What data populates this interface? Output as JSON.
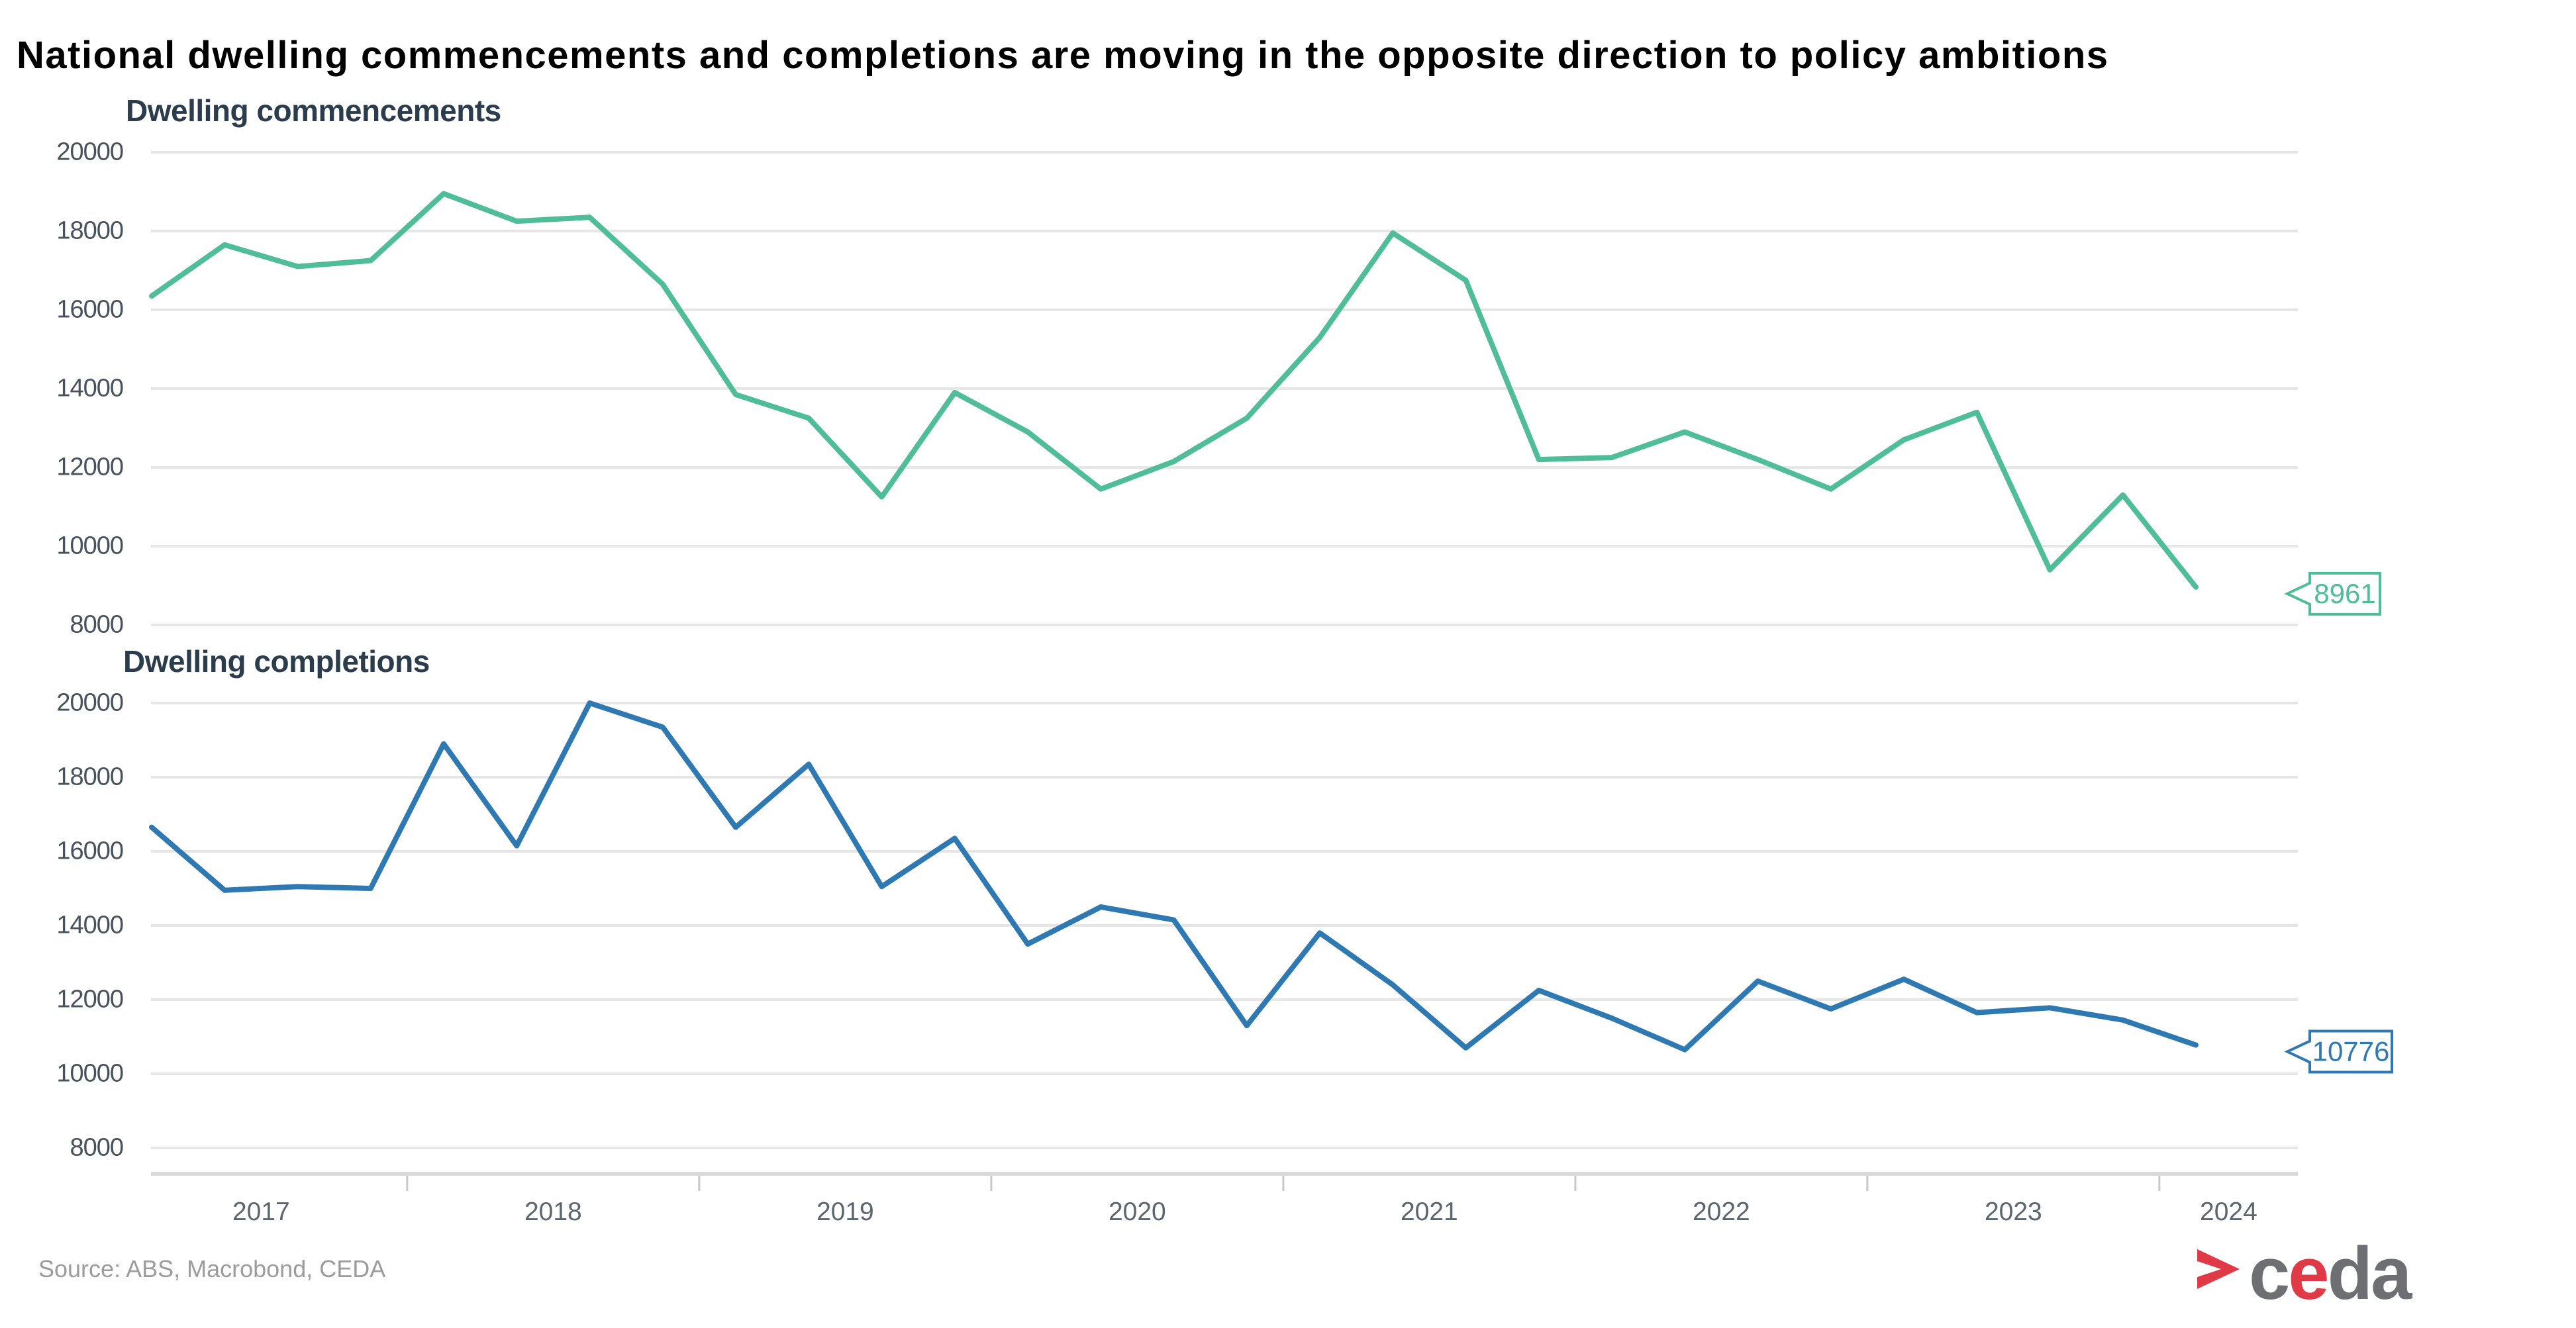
{
  "title": "National dwelling commencements and completions are moving in the opposite direction to policy ambitions",
  "source": "Source: ABS, Macrobond, CEDA",
  "x_years": [
    "2017",
    "2018",
    "2019",
    "2020",
    "2021",
    "2022",
    "2023",
    "2024"
  ],
  "chart_data": [
    {
      "type": "line",
      "title": "Dwelling commencements",
      "line_color": "#4FBD97",
      "end_label": "8961",
      "ylim": [
        8000,
        20000
      ],
      "yticks": [
        20000,
        18000,
        16000,
        14000,
        12000,
        10000,
        8000
      ],
      "grid": true,
      "legend": "none",
      "categories": [
        "2017 Q1",
        "2017 Q2",
        "2017 Q3",
        "2017 Q4",
        "2018 Q1",
        "2018 Q2",
        "2018 Q3",
        "2018 Q4",
        "2019 Q1",
        "2019 Q2",
        "2019 Q3",
        "2019 Q4",
        "2020 Q1",
        "2020 Q2",
        "2020 Q3",
        "2020 Q4",
        "2021 Q1",
        "2021 Q2",
        "2021 Q3",
        "2021 Q4",
        "2022 Q1",
        "2022 Q2",
        "2022 Q3",
        "2022 Q4",
        "2023 Q1",
        "2023 Q2",
        "2023 Q3",
        "2023 Q4",
        "2024 Q1"
      ],
      "values": [
        16350,
        17650,
        17100,
        17250,
        18950,
        18250,
        18350,
        16650,
        13850,
        13250,
        11250,
        13900,
        12900,
        11450,
        12150,
        13250,
        15300,
        17950,
        16750,
        12200,
        12250,
        12900,
        12200,
        11450,
        12700,
        13400,
        9400,
        11300,
        8961
      ]
    },
    {
      "type": "line",
      "title": "Dwelling completions",
      "line_color": "#2E79B2",
      "end_label": "10776",
      "ylim": [
        8000,
        20000
      ],
      "yticks": [
        20000,
        18000,
        16000,
        14000,
        12000,
        10000,
        8000
      ],
      "grid": true,
      "legend": "none",
      "categories": [
        "2017 Q1",
        "2017 Q2",
        "2017 Q3",
        "2017 Q4",
        "2018 Q1",
        "2018 Q2",
        "2018 Q3",
        "2018 Q4",
        "2019 Q1",
        "2019 Q2",
        "2019 Q3",
        "2019 Q4",
        "2020 Q1",
        "2020 Q2",
        "2020 Q3",
        "2020 Q4",
        "2021 Q1",
        "2021 Q2",
        "2021 Q3",
        "2021 Q4",
        "2022 Q1",
        "2022 Q2",
        "2022 Q3",
        "2022 Q4",
        "2023 Q1",
        "2023 Q2",
        "2023 Q3",
        "2023 Q4",
        "2024 Q1"
      ],
      "values": [
        16650,
        14950,
        15050,
        15000,
        18900,
        16150,
        20000,
        19350,
        16650,
        18350,
        15050,
        16350,
        13500,
        14500,
        14150,
        11300,
        13800,
        12400,
        10700,
        12250,
        11500,
        10650,
        12500,
        11750,
        12550,
        11650,
        11780,
        11450,
        10776
      ]
    }
  ],
  "logo": {
    "chevron_color": "#E13A47",
    "segments": [
      {
        "text": "c",
        "color": "#6E6F72"
      },
      {
        "text": "e",
        "color": "#E13A47"
      },
      {
        "text": "da",
        "color": "#6E6F72"
      }
    ]
  }
}
